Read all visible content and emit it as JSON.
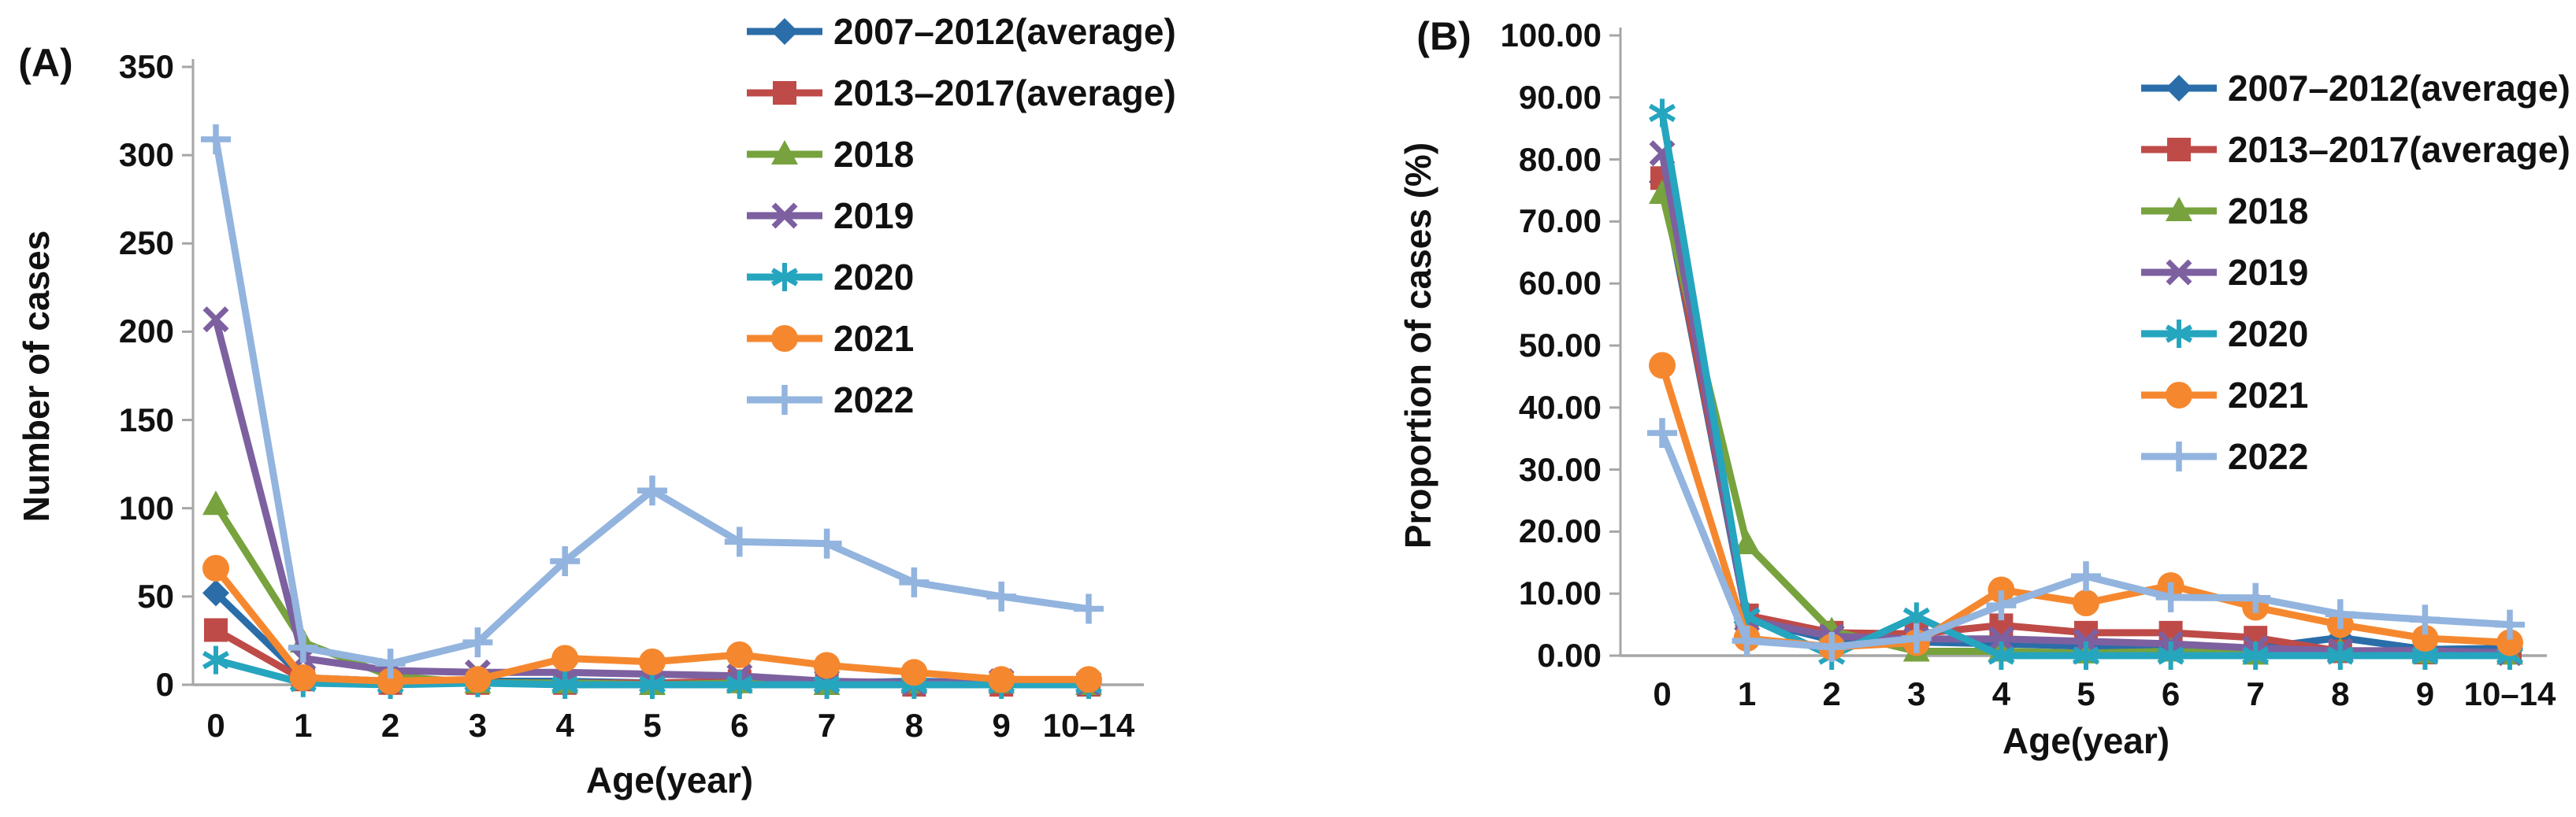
{
  "chart_data": [
    {
      "type": "line",
      "panel_label": "(A)",
      "xlabel": "Age(year)",
      "ylabel": "Number of cases",
      "categories": [
        "0",
        "1",
        "2",
        "3",
        "4",
        "5",
        "6",
        "7",
        "8",
        "9",
        "10–14"
      ],
      "y_ticks": [
        "0",
        "50",
        "100",
        "150",
        "200",
        "250",
        "300",
        "350"
      ],
      "ylim": [
        0,
        350
      ],
      "grid": false,
      "legend_position": "inside-top-right",
      "series": [
        {
          "name": "2007–2012(average)",
          "color": "#2A6DA9",
          "marker": "diamond",
          "values": [
            52,
            4,
            2,
            2,
            2,
            1,
            1,
            1,
            2,
            1,
            1
          ]
        },
        {
          "name": "2013–2017(average)",
          "color": "#BE4B48",
          "marker": "square",
          "values": [
            31,
            3,
            1,
            1,
            1,
            1,
            2,
            2,
            0,
            0,
            0
          ]
        },
        {
          "name": "2018",
          "color": "#77A23D",
          "marker": "triangle",
          "values": [
            102,
            24,
            5,
            1,
            1,
            0,
            1,
            0,
            1,
            1,
            0
          ]
        },
        {
          "name": "2019",
          "color": "#7D60A0",
          "marker": "x",
          "values": [
            207,
            15,
            8,
            7,
            7,
            6,
            5,
            2,
            1,
            2,
            1
          ]
        },
        {
          "name": "2020",
          "color": "#26A5BF",
          "marker": "asterisk",
          "values": [
            14,
            1,
            0,
            1,
            0,
            0,
            0,
            0,
            0,
            0,
            0
          ]
        },
        {
          "name": "2021",
          "color": "#F5882F",
          "marker": "circle",
          "values": [
            66,
            4,
            2,
            3,
            15,
            13,
            17,
            11,
            7,
            3,
            3
          ]
        },
        {
          "name": "2022",
          "color": "#92B4DE",
          "marker": "plus",
          "values": [
            309,
            21,
            12,
            24,
            70,
            110,
            81,
            80,
            58,
            50,
            43
          ]
        }
      ]
    },
    {
      "type": "line",
      "panel_label": "(B)",
      "xlabel": "Age(year)",
      "ylabel": "Proportion of cases (%)",
      "categories": [
        "0",
        "1",
        "2",
        "3",
        "4",
        "5",
        "6",
        "7",
        "8",
        "9",
        "10–14"
      ],
      "y_ticks": [
        "0.00",
        "10.00",
        "20.00",
        "30.00",
        "40.00",
        "50.00",
        "60.00",
        "70.00",
        "80.00",
        "90.00",
        "100.00"
      ],
      "ylim": [
        0,
        100
      ],
      "grid": false,
      "legend_position": "inside-top-right",
      "series": [
        {
          "name": "2007–2012(average)",
          "color": "#2A6DA9",
          "marker": "diamond",
          "values": [
            76.4,
            5.9,
            2.5,
            2.2,
            1.9,
            1.5,
            1.2,
            1.2,
            2.9,
            1.0,
            1.2
          ]
        },
        {
          "name": "2013–2017(average)",
          "color": "#BE4B48",
          "marker": "square",
          "values": [
            77.0,
            6.5,
            3.7,
            3.5,
            4.9,
            3.7,
            3.7,
            2.9,
            0.7,
            0.5,
            0.5
          ]
        },
        {
          "name": "2018",
          "color": "#77A23D",
          "marker": "triangle",
          "values": [
            74.5,
            18.0,
            4.0,
            0.7,
            0.7,
            0.4,
            0.7,
            0.2,
            0.7,
            0.4,
            0.2
          ]
        },
        {
          "name": "2019",
          "color": "#7D60A0",
          "marker": "x",
          "values": [
            81.0,
            5.8,
            3.1,
            2.7,
            2.7,
            2.3,
            1.9,
            1.2,
            0.8,
            0.8,
            0.4
          ]
        },
        {
          "name": "2020",
          "color": "#26A5BF",
          "marker": "asterisk",
          "values": [
            87.5,
            6.3,
            0.0,
            6.3,
            0.0,
            0.0,
            0.0,
            0.0,
            0.0,
            0.0,
            0.0
          ]
        },
        {
          "name": "2021",
          "color": "#F5882F",
          "marker": "circle",
          "values": [
            46.8,
            2.8,
            1.4,
            2.1,
            10.6,
            8.5,
            11.3,
            7.8,
            5.0,
            2.8,
            2.1
          ]
        },
        {
          "name": "2022",
          "color": "#92B4DE",
          "marker": "plus",
          "values": [
            35.9,
            2.4,
            1.4,
            2.8,
            8.1,
            12.8,
            9.4,
            9.3,
            6.7,
            5.8,
            5.0
          ]
        }
      ]
    }
  ]
}
